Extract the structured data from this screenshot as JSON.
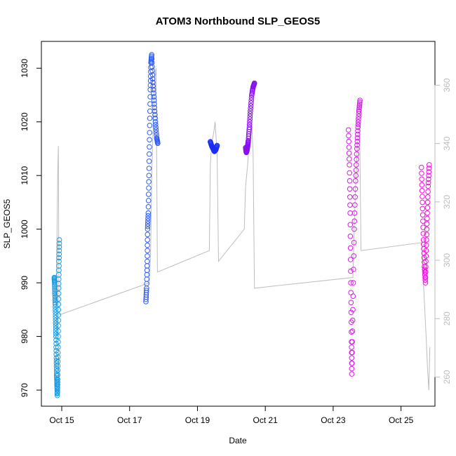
{
  "chart_data": {
    "type": "scatter",
    "title": "ATOM3 Northbound SLP_GEOS5",
    "xlabel": "Date",
    "ylabel": "SLP_GEOS5",
    "x_ticks": [
      "Oct 15",
      "Oct 17",
      "Oct 19",
      "Oct 21",
      "Oct 23",
      "Oct 25"
    ],
    "x_tick_days": [
      15,
      17,
      19,
      21,
      23,
      25
    ],
    "xlim": [
      14.4,
      26.0
    ],
    "ylim": [
      967,
      1035
    ],
    "y_ticks": [
      970,
      980,
      990,
      1000,
      1010,
      1020,
      1030
    ],
    "y2lim": [
      250,
      375
    ],
    "y2_ticks": [
      260,
      280,
      300,
      320,
      340,
      360
    ],
    "y2_tick_color": "#bdbdbd",
    "line_color": "#bdbdbd",
    "grid": false,
    "series": [
      {
        "color": "#1e9be0",
        "points": [
          [
            14.78,
            991
          ],
          [
            14.79,
            990
          ],
          [
            14.8,
            988
          ],
          [
            14.81,
            986
          ],
          [
            14.82,
            983
          ],
          [
            14.83,
            980
          ],
          [
            14.84,
            976
          ],
          [
            14.85,
            973
          ],
          [
            14.86,
            971
          ],
          [
            14.87,
            969
          ],
          [
            14.88,
            972
          ],
          [
            14.89,
            977
          ],
          [
            14.9,
            983
          ],
          [
            14.91,
            989
          ],
          [
            14.92,
            994
          ],
          [
            14.93,
            998
          ]
        ]
      },
      {
        "color": "#2f5cf0",
        "points": [
          [
            17.48,
            986.5
          ],
          [
            17.5,
            989
          ],
          [
            17.52,
            994
          ],
          [
            17.53,
            1000
          ],
          [
            17.55,
            1003
          ],
          [
            17.57,
            1010
          ],
          [
            17.59,
            1018
          ],
          [
            17.61,
            1026
          ],
          [
            17.63,
            1031
          ],
          [
            17.65,
            1032.5
          ],
          [
            17.68,
            1028
          ],
          [
            17.72,
            1024
          ],
          [
            17.76,
            1020
          ],
          [
            17.8,
            1017
          ],
          [
            17.83,
            1016
          ]
        ]
      },
      {
        "color": "#1a2ef5",
        "points": [
          [
            19.38,
            1016.3
          ],
          [
            19.42,
            1015.5
          ],
          [
            19.46,
            1015
          ],
          [
            19.5,
            1014.5
          ],
          [
            19.54,
            1014.8
          ],
          [
            19.58,
            1015.6
          ]
        ]
      },
      {
        "color": "#8a10f0",
        "points": [
          [
            20.42,
            1015.2
          ],
          [
            20.44,
            1014.3
          ],
          [
            20.46,
            1014.7
          ],
          [
            20.48,
            1015.5
          ],
          [
            20.5,
            1016.5
          ],
          [
            20.53,
            1019
          ],
          [
            20.56,
            1022
          ],
          [
            20.6,
            1025
          ],
          [
            20.64,
            1026.5
          ],
          [
            20.68,
            1027.2
          ]
        ]
      },
      {
        "color": "#d61ce8",
        "points": [
          [
            23.45,
            1018.5
          ],
          [
            23.48,
            1012
          ],
          [
            23.5,
            1003
          ],
          [
            23.52,
            990
          ],
          [
            23.54,
            979
          ],
          [
            23.55,
            973
          ],
          [
            23.58,
            985
          ],
          [
            23.62,
            1000
          ],
          [
            23.66,
            1009
          ],
          [
            23.7,
            1015
          ],
          [
            23.73,
            1019
          ],
          [
            23.76,
            1022
          ],
          [
            23.79,
            1024
          ]
        ]
      },
      {
        "color": "#f010d8",
        "points": [
          [
            25.6,
            1011.5
          ],
          [
            25.63,
            1005
          ],
          [
            25.66,
            998
          ],
          [
            25.69,
            993
          ],
          [
            25.72,
            990
          ],
          [
            25.74,
            996
          ],
          [
            25.77,
            1002
          ],
          [
            25.8,
            1008
          ],
          [
            25.83,
            1012
          ]
        ]
      }
    ],
    "line_series": [
      {
        "points": [
          [
            14.82,
            985
          ],
          [
            14.86,
            998
          ],
          [
            14.88,
            1010
          ],
          [
            14.9,
            1015.5
          ],
          [
            14.92,
            984
          ],
          [
            17.58,
            990
          ],
          [
            17.62,
            996
          ],
          [
            17.64,
            1004
          ],
          [
            17.66,
            1012
          ],
          [
            17.7,
            1020
          ],
          [
            17.74,
            1028
          ],
          [
            17.78,
            1030
          ],
          [
            17.82,
            992
          ],
          [
            19.35,
            996
          ],
          [
            19.38,
            1012
          ],
          [
            19.42,
            1016
          ],
          [
            19.48,
            1018
          ],
          [
            19.52,
            1020
          ],
          [
            19.58,
            1014
          ],
          [
            19.62,
            994
          ],
          [
            20.38,
            1000
          ],
          [
            20.42,
            1008
          ],
          [
            20.48,
            1012
          ],
          [
            20.52,
            1016
          ],
          [
            20.56,
            1018
          ],
          [
            20.6,
            1020
          ],
          [
            20.64,
            1014
          ],
          [
            20.68,
            989
          ],
          [
            23.58,
            991
          ],
          [
            23.62,
            1000
          ],
          [
            23.66,
            1008
          ],
          [
            23.72,
            1016
          ],
          [
            23.78,
            1020
          ],
          [
            23.82,
            996
          ],
          [
            25.62,
            997.5
          ],
          [
            25.66,
            990
          ],
          [
            25.7,
            985
          ],
          [
            25.74,
            980
          ],
          [
            25.78,
            974
          ],
          [
            25.82,
            970
          ],
          [
            25.85,
            978
          ]
        ]
      }
    ]
  }
}
